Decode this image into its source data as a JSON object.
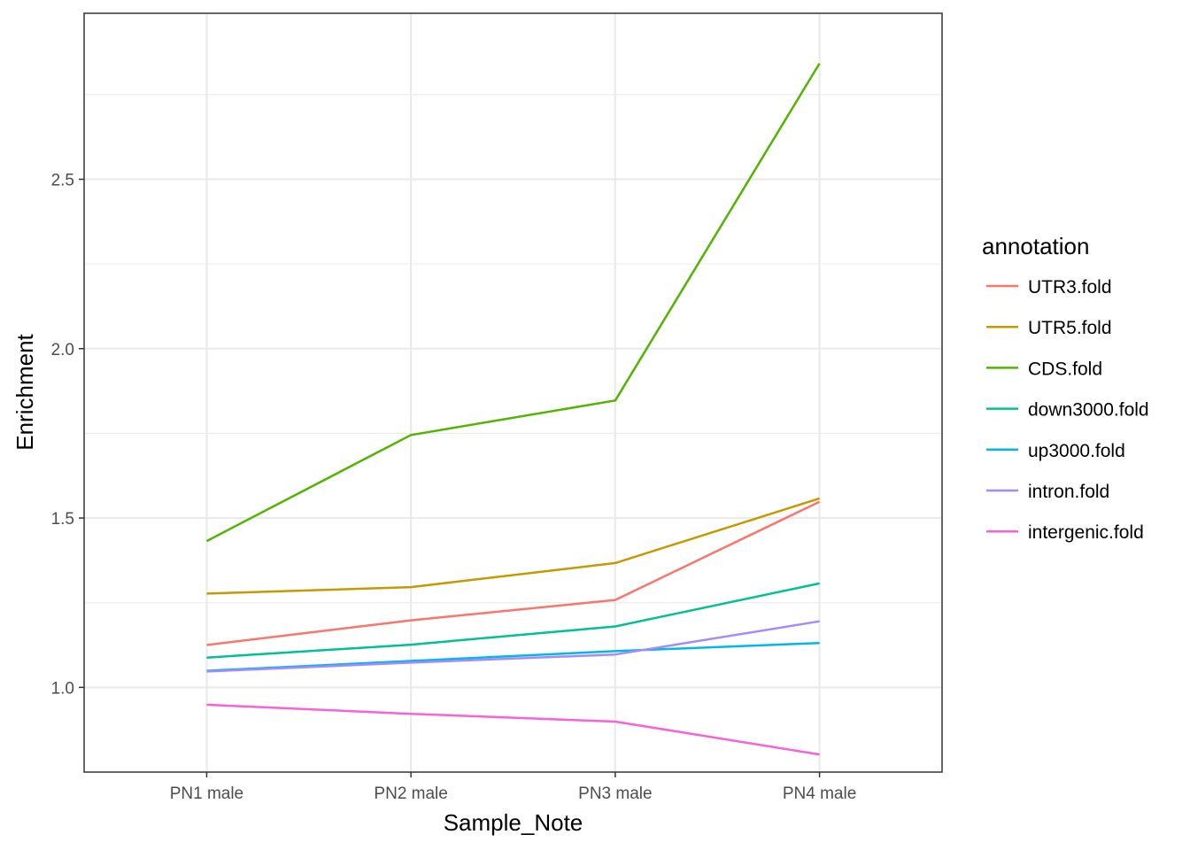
{
  "chart_data": {
    "type": "line",
    "xlabel": "Sample_Note",
    "ylabel": "Enrichment",
    "categories": [
      "PN1 male",
      "PN2 male",
      "PN3 male",
      "PN4 male"
    ],
    "ylim": [
      0.75,
      2.99
    ],
    "yticks": [
      1.0,
      1.5,
      2.0,
      2.5
    ],
    "ytick_labels": [
      "1.0",
      "1.5",
      "2.0",
      "2.5"
    ],
    "grid": true,
    "legend": {
      "title": "annotation",
      "position": "right"
    },
    "series": [
      {
        "name": "UTR3.fold",
        "color": "#F8766D",
        "values": [
          1.125,
          1.198,
          1.258,
          1.548
        ]
      },
      {
        "name": "UTR5.fold",
        "color": "#C49A00",
        "values": [
          1.277,
          1.296,
          1.367,
          1.558
        ]
      },
      {
        "name": "CDS.fold",
        "color": "#53B400",
        "values": [
          1.432,
          1.745,
          1.847,
          2.842
        ]
      },
      {
        "name": "down3000.fold",
        "color": "#00C094",
        "values": [
          1.088,
          1.126,
          1.18,
          1.307
        ]
      },
      {
        "name": "up3000.fold",
        "color": "#00B6EB",
        "values": [
          1.049,
          1.078,
          1.107,
          1.131
        ]
      },
      {
        "name": "intron.fold",
        "color": "#A58AFF",
        "values": [
          1.047,
          1.073,
          1.097,
          1.195
        ]
      },
      {
        "name": "intergenic.fold",
        "color": "#FB61D7",
        "values": [
          0.949,
          0.922,
          0.899,
          0.802
        ]
      }
    ]
  }
}
